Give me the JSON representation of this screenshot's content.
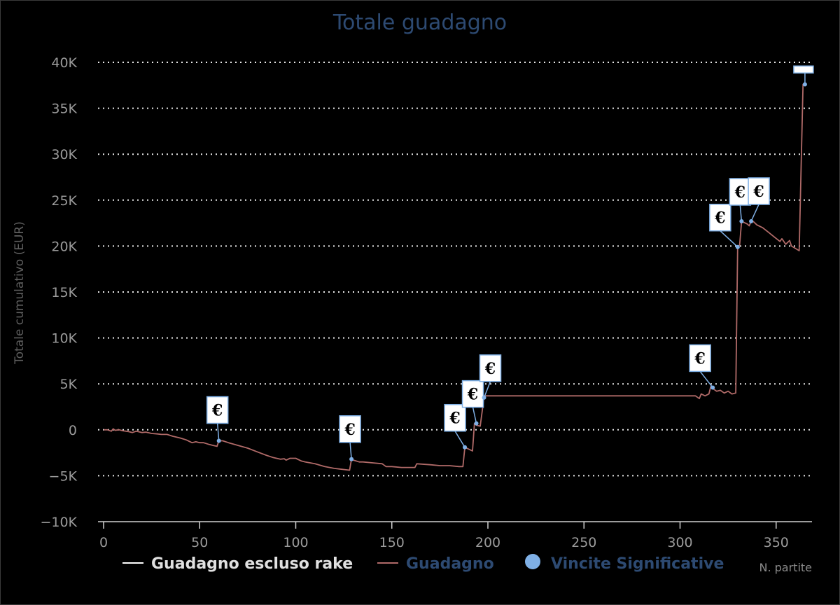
{
  "chart_data": {
    "type": "line",
    "title": "Totale guadagno",
    "xlabel": "N. partite",
    "ylabel": "Totale cumulativo (EUR)",
    "ylim": [
      -10000,
      40000
    ],
    "xlim": [
      0,
      365
    ],
    "yticks": [
      -10000,
      -5000,
      0,
      5000,
      10000,
      15000,
      20000,
      25000,
      30000,
      35000,
      40000
    ],
    "ytick_labels": [
      "−10K",
      "−5K",
      "0",
      "5K",
      "10K",
      "15K",
      "20K",
      "25K",
      "30K",
      "35K",
      "40K"
    ],
    "xticks": [
      0,
      50,
      100,
      150,
      200,
      250,
      300,
      350
    ],
    "xtick_labels": [
      "0",
      "50",
      "100",
      "150",
      "200",
      "250",
      "300",
      "350"
    ],
    "grid": true,
    "legend_position": "bottom",
    "series": [
      {
        "name": "Guadagno escluso rake",
        "color": "#ffffff",
        "x": [],
        "y": []
      },
      {
        "name": "Guadagno",
        "color": "#b06a68",
        "x": [
          0,
          2,
          4,
          5,
          6,
          8,
          10,
          13,
          15,
          17,
          20,
          22,
          25,
          28,
          30,
          33,
          36,
          40,
          43,
          46,
          48,
          50,
          52,
          55,
          57,
          59,
          60,
          62,
          65,
          70,
          75,
          80,
          85,
          88,
          90,
          92,
          94,
          95,
          97,
          100,
          103,
          105,
          110,
          115,
          120,
          124,
          128,
          129,
          130,
          133,
          135,
          140,
          145,
          147,
          150,
          155,
          160,
          162,
          163,
          170,
          175,
          180,
          185,
          187,
          188,
          190,
          192,
          193,
          194,
          196,
          197,
          198,
          200,
          210,
          230,
          250,
          270,
          290,
          308,
          310,
          311,
          313,
          315,
          316,
          317,
          319,
          321,
          323,
          325,
          327,
          329,
          330,
          331,
          332,
          333,
          335,
          336,
          337,
          338,
          340,
          343,
          346,
          349,
          352,
          353,
          355,
          357,
          358,
          362,
          364,
          365
        ],
        "y": [
          0,
          0,
          -150,
          100,
          -50,
          0,
          -100,
          -200,
          -300,
          -150,
          -300,
          -250,
          -400,
          -450,
          -500,
          -500,
          -700,
          -900,
          -1100,
          -1400,
          -1300,
          -1400,
          -1400,
          -1600,
          -1700,
          -1800,
          -1200,
          -1200,
          -1400,
          -1700,
          -2000,
          -2400,
          -2800,
          -3000,
          -3100,
          -3200,
          -3150,
          -3300,
          -3100,
          -3100,
          -3400,
          -3500,
          -3700,
          -4000,
          -4200,
          -4300,
          -4400,
          -3200,
          -3300,
          -3500,
          -3500,
          -3600,
          -3700,
          -4000,
          -4000,
          -4100,
          -4100,
          -4100,
          -3700,
          -3800,
          -3900,
          -3900,
          -4000,
          -4000,
          -1900,
          -2100,
          -2300,
          700,
          500,
          400,
          2000,
          3700,
          3700,
          3700,
          3700,
          3700,
          3700,
          3700,
          3700,
          3400,
          3900,
          3700,
          3900,
          4700,
          4500,
          4200,
          4300,
          4000,
          4200,
          3900,
          4000,
          19900,
          20100,
          22600,
          22600,
          22400,
          22200,
          22700,
          22700,
          22300,
          22000,
          21500,
          21000,
          20500,
          20800,
          20200,
          20600,
          20000,
          19500,
          37600,
          37800
        ]
      },
      {
        "name": "Vincite Significative",
        "color": "#7fb0e6",
        "points": [
          {
            "x": 60,
            "y": -1200,
            "label": "€"
          },
          {
            "x": 129,
            "y": -3200,
            "label": "€"
          },
          {
            "x": 188,
            "y": -1900,
            "label": "€"
          },
          {
            "x": 194,
            "y": 700,
            "label": "€"
          },
          {
            "x": 198,
            "y": 3500,
            "label": "€"
          },
          {
            "x": 317,
            "y": 4600,
            "label": "€"
          },
          {
            "x": 330,
            "y": 19900,
            "label": "€"
          },
          {
            "x": 332,
            "y": 22700,
            "label": "€"
          },
          {
            "x": 337,
            "y": 22700,
            "label": "€"
          },
          {
            "x": 365,
            "y": 37600,
            "label": "€"
          }
        ]
      }
    ]
  }
}
